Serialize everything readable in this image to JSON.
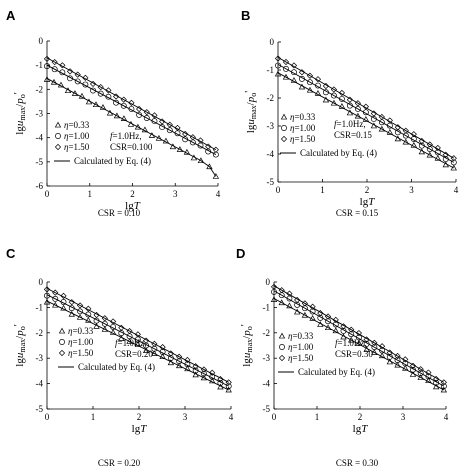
{
  "figure": {
    "panels": [
      {
        "letter": "A",
        "caption": "CSR = 0.10"
      },
      {
        "letter": "B",
        "caption": "CSR = 0.15"
      },
      {
        "letter": "C",
        "caption": "CSR = 0.20"
      },
      {
        "letter": "D",
        "caption": "CSR = 0.30"
      }
    ]
  },
  "chart_data": [
    {
      "type": "line",
      "panel": "A",
      "xlabel": "lgT",
      "ylabel": "lgu_max/p_o'",
      "xlim": [
        0,
        4
      ],
      "ylim": [
        -6,
        0
      ],
      "xticks": [
        "0",
        "1",
        "2",
        "3",
        "4"
      ],
      "yticks": [
        "0",
        "-1",
        "-2",
        "-3",
        "-4",
        "-5",
        "-6"
      ],
      "legend": {
        "entries": [
          "η=0.33",
          "η=1.00",
          "η=1.50"
        ],
        "fit_label": "Calculated by Eq. (4)",
        "params": [
          "f=1.0Hz,",
          "CSR=0.100"
        ]
      },
      "series": [
        {
          "name": "η=0.33",
          "marker": "triangle",
          "x_start": 0.0,
          "y_start": -1.55,
          "x_end": 3.6,
          "y_end": -4.95,
          "tail": [
            [
              3.8,
              -5.2
            ],
            [
              3.95,
              -5.6
            ]
          ]
        },
        {
          "name": "η=1.00",
          "marker": "circle",
          "x_start": 0.0,
          "y_start": -1.0,
          "x_end": 3.95,
          "y_end": -4.7
        },
        {
          "name": "η=1.50",
          "marker": "diamond",
          "x_start": 0.0,
          "y_start": -0.7,
          "x_end": 3.95,
          "y_end": -4.5
        }
      ]
    },
    {
      "type": "line",
      "panel": "B",
      "xlabel": "lgT",
      "ylabel": "lgu_max/p_o'",
      "xlim": [
        0,
        4
      ],
      "ylim": [
        -5,
        0
      ],
      "xticks": [
        "0",
        "1",
        "2",
        "3",
        "4"
      ],
      "yticks": [
        "0",
        "-1",
        "-2",
        "-3",
        "-4",
        "-5"
      ],
      "legend": {
        "entries": [
          "η=0.33",
          "η=1.00",
          "η=1.50"
        ],
        "fit_label": "Calculated by Eq. (4)",
        "params": [
          "f=1.0Hz,",
          "CSR=0.15"
        ]
      },
      "series": [
        {
          "name": "η=0.33",
          "marker": "triangle",
          "x_start": 0.0,
          "y_start": -1.1,
          "x_end": 3.95,
          "y_end": -4.5
        },
        {
          "name": "η=1.00",
          "marker": "circle",
          "x_start": 0.0,
          "y_start": -0.8,
          "x_end": 3.95,
          "y_end": -4.3
        },
        {
          "name": "η=1.50",
          "marker": "diamond",
          "x_start": 0.0,
          "y_start": -0.55,
          "x_end": 3.95,
          "y_end": -4.15
        }
      ]
    },
    {
      "type": "line",
      "panel": "C",
      "xlabel": "lgT",
      "ylabel": "lgu_max/p_o'",
      "xlim": [
        0,
        4
      ],
      "ylim": [
        -5,
        0
      ],
      "xticks": [
        "0",
        "1",
        "2",
        "3",
        "4"
      ],
      "yticks": [
        "0",
        "-1",
        "-2",
        "-3",
        "-4",
        "-5"
      ],
      "legend": {
        "entries": [
          "η=0.33",
          "η=1.00",
          "η=1.50"
        ],
        "fit_label": "Calculated by Eq. (4)",
        "params": [
          "f=1.0Hz,",
          "CSR=0.20"
        ]
      },
      "series": [
        {
          "name": "η=0.33",
          "marker": "triangle",
          "x_start": 0.0,
          "y_start": -0.75,
          "x_end": 3.95,
          "y_end": -4.25
        },
        {
          "name": "η=1.00",
          "marker": "circle",
          "x_start": 0.0,
          "y_start": -0.5,
          "x_end": 3.95,
          "y_end": -4.1
        },
        {
          "name": "η=1.50",
          "marker": "diamond",
          "x_start": 0.0,
          "y_start": -0.25,
          "x_end": 3.95,
          "y_end": -3.95
        }
      ]
    },
    {
      "type": "line",
      "panel": "D",
      "xlabel": "lgT",
      "ylabel": "lgu_max/p_o'",
      "xlim": [
        0,
        4
      ],
      "ylim": [
        -5,
        0
      ],
      "xticks": [
        "0",
        "1",
        "2",
        "3",
        "4"
      ],
      "yticks": [
        "0",
        "-1",
        "-2",
        "-3",
        "-4",
        "-5"
      ],
      "legend": {
        "entries": [
          "η=0.33",
          "η=1.00",
          "η=1.50"
        ],
        "fit_label": "Calculated by Eq. (4)",
        "params": [
          "f=1.0Hz,",
          "CSR=0.30"
        ]
      },
      "series": [
        {
          "name": "η=0.33",
          "marker": "triangle",
          "x_start": 0.0,
          "y_start": -0.65,
          "x_end": 3.95,
          "y_end": -4.25
        },
        {
          "name": "η=1.00",
          "marker": "circle",
          "x_start": 0.0,
          "y_start": -0.35,
          "x_end": 3.95,
          "y_end": -4.1
        },
        {
          "name": "η=1.50",
          "marker": "diamond",
          "x_start": 0.0,
          "y_start": -0.15,
          "x_end": 3.95,
          "y_end": -3.95
        }
      ]
    }
  ]
}
